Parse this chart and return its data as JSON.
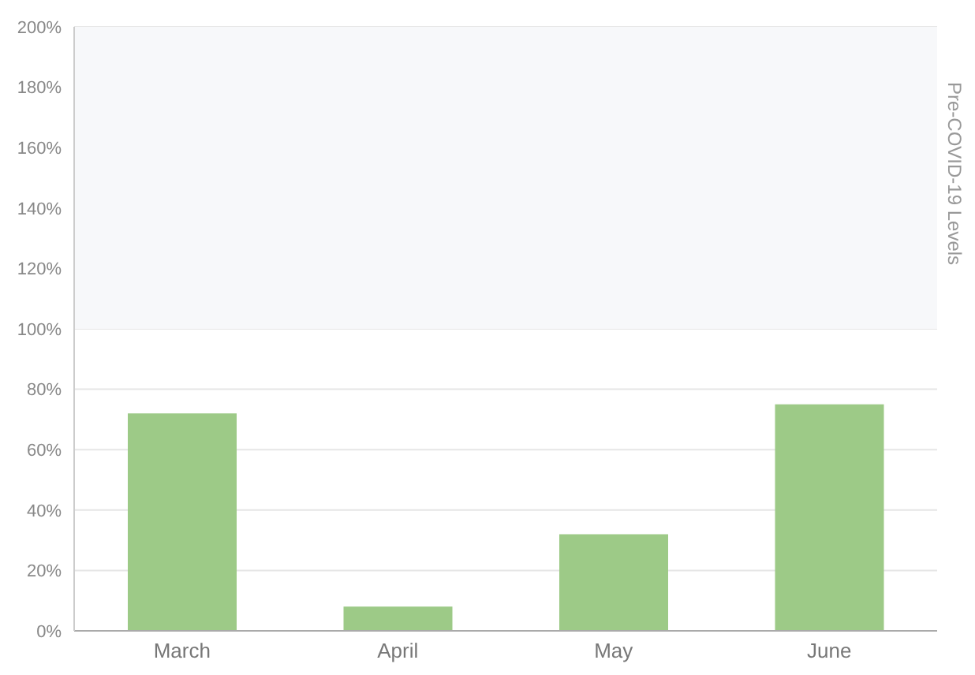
{
  "chart_data": {
    "type": "bar",
    "categories": [
      "March",
      "April",
      "May",
      "June"
    ],
    "series": [
      {
        "color": "#9dca87",
        "values": [
          72,
          8,
          32,
          75
        ]
      }
    ],
    "ylim": [
      0,
      200
    ],
    "yticks": [
      {
        "value": 0,
        "label": "0%"
      },
      {
        "value": 20,
        "label": "20%"
      },
      {
        "value": 40,
        "label": "40%"
      },
      {
        "value": 60,
        "label": "60%"
      },
      {
        "value": 80,
        "label": "80%"
      },
      {
        "value": 100,
        "label": "100%"
      },
      {
        "value": 120,
        "label": "120%"
      },
      {
        "value": 140,
        "label": "140%"
      },
      {
        "value": 160,
        "label": "160%"
      },
      {
        "value": 180,
        "label": "180%"
      },
      {
        "value": 200,
        "label": "200%"
      }
    ],
    "grid": "y",
    "bands": [
      {
        "axis": "y",
        "from": 100,
        "to": 200,
        "label": "Pre-COVID-19 Levels",
        "color": "#f7f8fa"
      }
    ]
  }
}
